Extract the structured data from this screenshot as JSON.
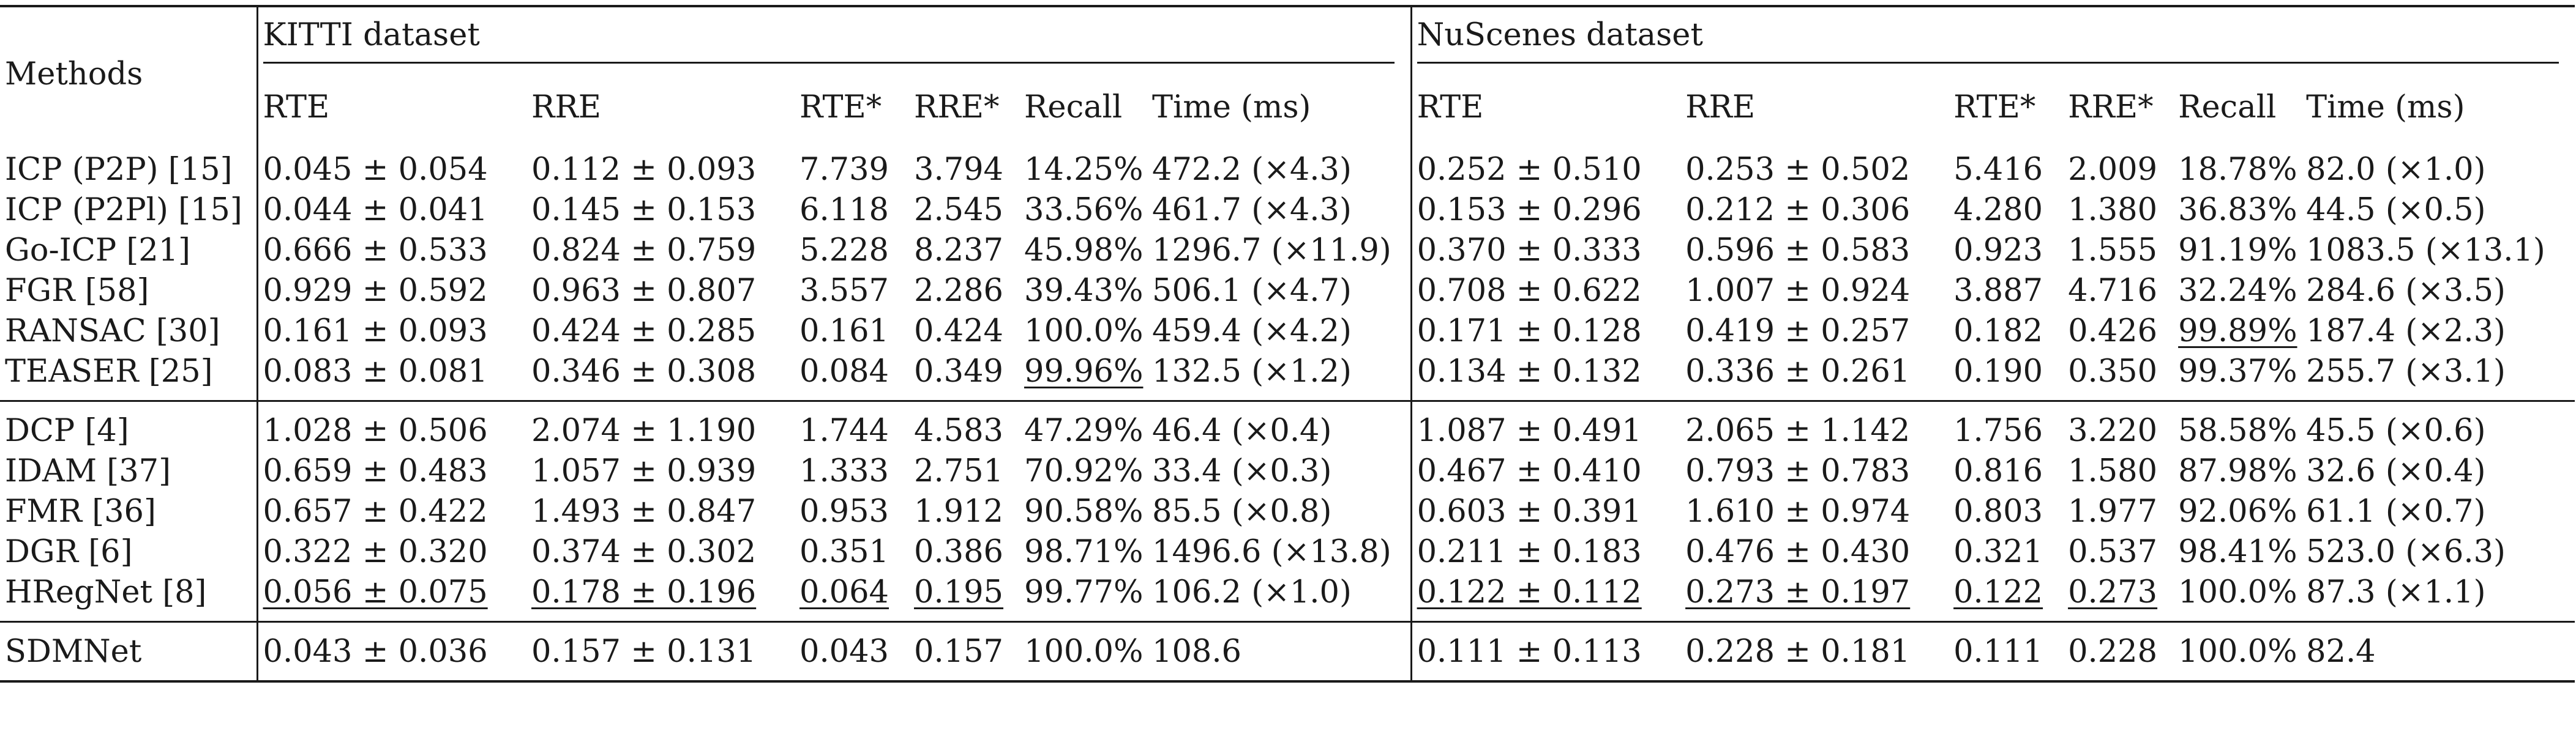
{
  "table": {
    "methods_header": "Methods",
    "datasets": [
      "KITTI dataset",
      "NuScenes dataset"
    ],
    "columns": [
      "RTE",
      "RRE",
      "RTE*",
      "RRE*",
      "Recall",
      "Time (ms)"
    ],
    "groups": [
      {
        "rows": [
          {
            "method": "ICP (P2P) [15]",
            "kitti": [
              "0.045 ± 0.054",
              "0.112 ± 0.093",
              "7.739",
              "3.794",
              "14.25%",
              "472.2 (×4.3)"
            ],
            "nuscenes": [
              "0.252 ± 0.510",
              "0.253 ± 0.502",
              "5.416",
              "2.009",
              "18.78%",
              "82.0 (×1.0)"
            ]
          },
          {
            "method": "ICP (P2Pl) [15]",
            "kitti": [
              "0.044 ± 0.041",
              "0.145 ± 0.153",
              "6.118",
              "2.545",
              "33.56%",
              "461.7 (×4.3)"
            ],
            "nuscenes": [
              "0.153 ± 0.296",
              "0.212 ± 0.306",
              "4.280",
              "1.380",
              "36.83%",
              "44.5 (×0.5)"
            ]
          },
          {
            "method": "Go-ICP [21]",
            "kitti": [
              "0.666 ± 0.533",
              "0.824 ± 0.759",
              "5.228",
              "8.237",
              "45.98%",
              "1296.7 (×11.9)"
            ],
            "nuscenes": [
              "0.370 ± 0.333",
              "0.596 ± 0.583",
              "0.923",
              "1.555",
              "91.19%",
              "1083.5 (×13.1)"
            ]
          },
          {
            "method": "FGR [58]",
            "kitti": [
              "0.929 ± 0.592",
              "0.963 ± 0.807",
              "3.557",
              "2.286",
              "39.43%",
              "506.1 (×4.7)"
            ],
            "nuscenes": [
              "0.708 ± 0.622",
              "1.007 ± 0.924",
              "3.887",
              "4.716",
              "32.24%",
              "284.6 (×3.5)"
            ]
          },
          {
            "method": "RANSAC [30]",
            "kitti": [
              "0.161 ± 0.093",
              "0.424 ± 0.285",
              "0.161",
              "0.424",
              "100.0%",
              "459.4 (×4.2)"
            ],
            "nuscenes": [
              "0.171 ± 0.128",
              "0.419 ± 0.257",
              "0.182",
              "0.426",
              "99.89%",
              "187.4 (×2.3)"
            ]
          },
          {
            "method": "TEASER [25]",
            "kitti": [
              "0.083 ± 0.081",
              "0.346 ± 0.308",
              "0.084",
              "0.349",
              "99.96%",
              "132.5 (×1.2)"
            ],
            "nuscenes": [
              "0.134 ± 0.132",
              "0.336 ± 0.261",
              "0.190",
              "0.350",
              "99.37%",
              "255.7 (×3.1)"
            ]
          }
        ]
      },
      {
        "rows": [
          {
            "method": "DCP [4]",
            "kitti": [
              "1.028 ± 0.506",
              "2.074 ± 1.190",
              "1.744",
              "4.583",
              "47.29%",
              "46.4 (×0.4)"
            ],
            "nuscenes": [
              "1.087 ± 0.491",
              "2.065 ± 1.142",
              "1.756",
              "3.220",
              "58.58%",
              "45.5 (×0.6)"
            ]
          },
          {
            "method": "IDAM [37]",
            "kitti": [
              "0.659 ± 0.483",
              "1.057 ± 0.939",
              "1.333",
              "2.751",
              "70.92%",
              "33.4 (×0.3)"
            ],
            "nuscenes": [
              "0.467 ± 0.410",
              "0.793 ± 0.783",
              "0.816",
              "1.580",
              "87.98%",
              "32.6 (×0.4)"
            ]
          },
          {
            "method": "FMR [36]",
            "kitti": [
              "0.657 ± 0.422",
              "1.493 ± 0.847",
              "0.953",
              "1.912",
              "90.58%",
              "85.5 (×0.8)"
            ],
            "nuscenes": [
              "0.603 ± 0.391",
              "1.610 ± 0.974",
              "0.803",
              "1.977",
              "92.06%",
              "61.1 (×0.7)"
            ]
          },
          {
            "method": "DGR [6]",
            "kitti": [
              "0.322 ± 0.320",
              "0.374 ± 0.302",
              "0.351",
              "0.386",
              "98.71%",
              "1496.6 (×13.8)"
            ],
            "nuscenes": [
              "0.211 ± 0.183",
              "0.476 ± 0.430",
              "0.321",
              "0.537",
              "98.41%",
              "523.0 (×6.3)"
            ]
          },
          {
            "method": "HRegNet [8]",
            "kitti": [
              "0.056 ± 0.075",
              "0.178 ± 0.196",
              "0.064",
              "0.195",
              "99.77%",
              "106.2 (×1.0)"
            ],
            "nuscenes": [
              "0.122 ± 0.112",
              "0.273 ± 0.197",
              "0.122",
              "0.273",
              "100.0%",
              "87.3 (×1.1)"
            ]
          }
        ]
      },
      {
        "rows": [
          {
            "method": "SDMNet",
            "kitti": [
              "0.043 ± 0.036",
              "0.157 ± 0.131",
              "0.043",
              "0.157",
              "100.0%",
              "108.6"
            ],
            "nuscenes": [
              "0.111 ± 0.113",
              "0.228 ± 0.181",
              "0.111",
              "0.228",
              "100.0%",
              "82.4"
            ]
          }
        ]
      }
    ]
  }
}
